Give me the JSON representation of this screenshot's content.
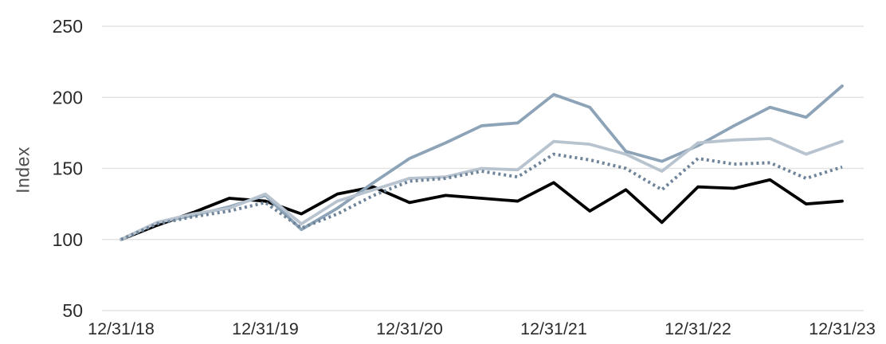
{
  "chart_data": {
    "type": "line",
    "title": "",
    "xlabel": "",
    "ylabel": "Index",
    "ylim": [
      50,
      250
    ],
    "grid": "horizontal",
    "legend": "none",
    "y_ticks": [
      250,
      200,
      150,
      100,
      50
    ],
    "x_ticks": [
      {
        "index": 0,
        "label": "12/31/18"
      },
      {
        "index": 4,
        "label": "12/31/19"
      },
      {
        "index": 8,
        "label": "12/31/20"
      },
      {
        "index": 12,
        "label": "12/31/21"
      },
      {
        "index": 16,
        "label": "12/31/22"
      },
      {
        "index": 20,
        "label": "12/31/23"
      }
    ],
    "points_per_year": 4,
    "colors": {
      "gridline": "#e3e3e3",
      "tick_text": "#2b2b2b",
      "axis_label_text": "#4f4f4f",
      "background": "#ffffff"
    },
    "series": [
      {
        "name": "black-solid-line",
        "color": "#000000",
        "style": "solid",
        "width": 3.8,
        "dash": "",
        "values": [
          100,
          110,
          119,
          129,
          127,
          118,
          132,
          137,
          126,
          131,
          129,
          127,
          140,
          120,
          135,
          112,
          137,
          136,
          142,
          125,
          127
        ]
      },
      {
        "name": "dark-bluegray-solid-line",
        "color": "#8da3b7",
        "style": "solid",
        "width": 3.8,
        "dash": "",
        "values": [
          100,
          112,
          117,
          123,
          131,
          107,
          122,
          140,
          157,
          168,
          180,
          182,
          202,
          193,
          162,
          155,
          166,
          180,
          193,
          186,
          208
        ]
      },
      {
        "name": "light-gray-solid-line",
        "color": "#b7c3ce",
        "style": "solid",
        "width": 3.8,
        "dash": "",
        "values": [
          100,
          112,
          118,
          122,
          132,
          111,
          127,
          135,
          143,
          144,
          150,
          149,
          169,
          167,
          160,
          148,
          168,
          170,
          171,
          160,
          169
        ]
      },
      {
        "name": "slate-dotted-line",
        "color": "#6f8499",
        "style": "dotted",
        "width": 4,
        "dash": "3 4",
        "values": [
          100,
          111,
          116,
          120,
          126,
          108,
          118,
          131,
          141,
          143,
          148,
          144,
          160,
          156,
          150,
          135,
          157,
          153,
          154,
          143,
          151
        ]
      }
    ]
  }
}
